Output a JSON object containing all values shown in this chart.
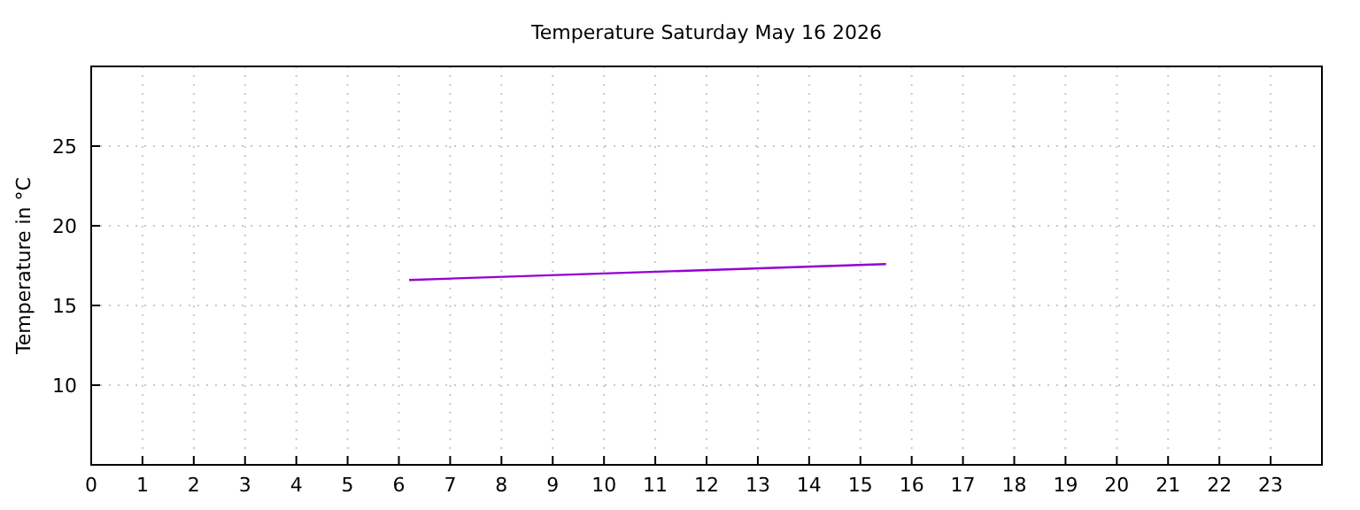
{
  "chart_data": {
    "type": "line",
    "title": "Temperature Saturday May 16 2026",
    "ylabel": "Temperature in °C",
    "x": [
      6.2,
      15.5
    ],
    "series": [
      {
        "color": "#9400d3",
        "values": [
          16.6,
          17.6
        ]
      }
    ],
    "xlim": [
      0,
      24
    ],
    "xticks": [
      0,
      1,
      2,
      3,
      4,
      5,
      6,
      7,
      8,
      9,
      10,
      11,
      12,
      13,
      14,
      15,
      16,
      17,
      18,
      19,
      20,
      21,
      22,
      23
    ],
    "ylim": [
      5,
      30
    ],
    "yticks": [
      10,
      15,
      20,
      25
    ],
    "grid": true,
    "marker": "none",
    "line_style": "solid"
  }
}
